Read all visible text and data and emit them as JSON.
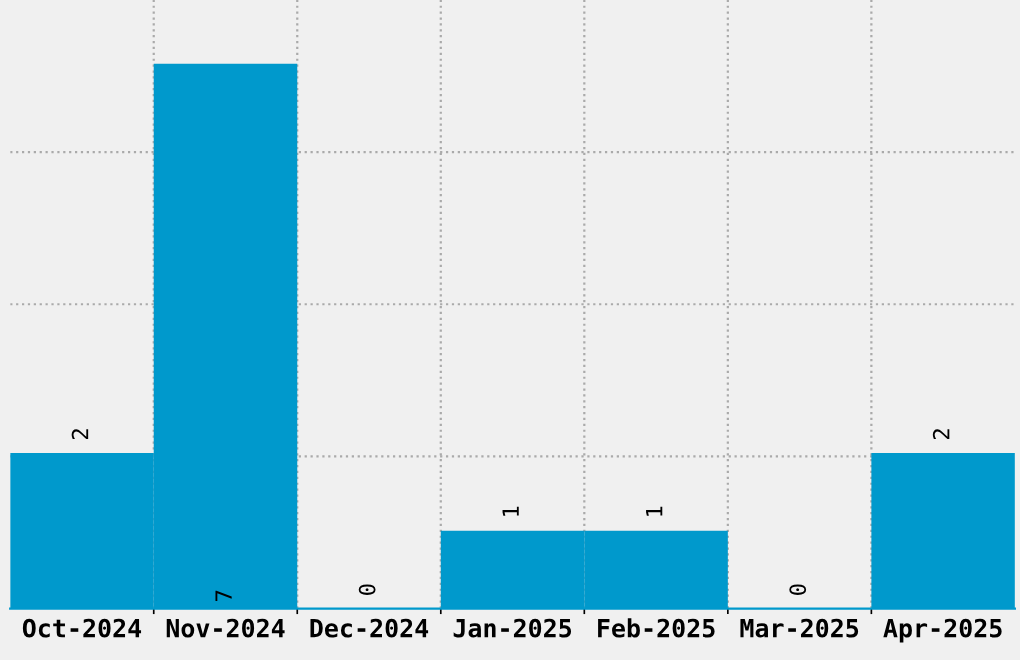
{
  "chart_data": {
    "type": "bar",
    "categories": [
      "Oct-2024",
      "Nov-2024",
      "Dec-2024",
      "Jan-2025",
      "Feb-2025",
      "Mar-2025",
      "Apr-2025"
    ],
    "values": [
      2,
      7,
      0,
      1,
      1,
      0,
      2
    ],
    "color": "#0099cc",
    "ylim": [
      0,
      7.82
    ],
    "yticks": [
      {
        "value": 1.955,
        "label": null
      },
      {
        "value": 3.91,
        "label": null
      },
      {
        "value": 5.865,
        "label": null
      }
    ],
    "grid": true,
    "data_labels": true
  }
}
